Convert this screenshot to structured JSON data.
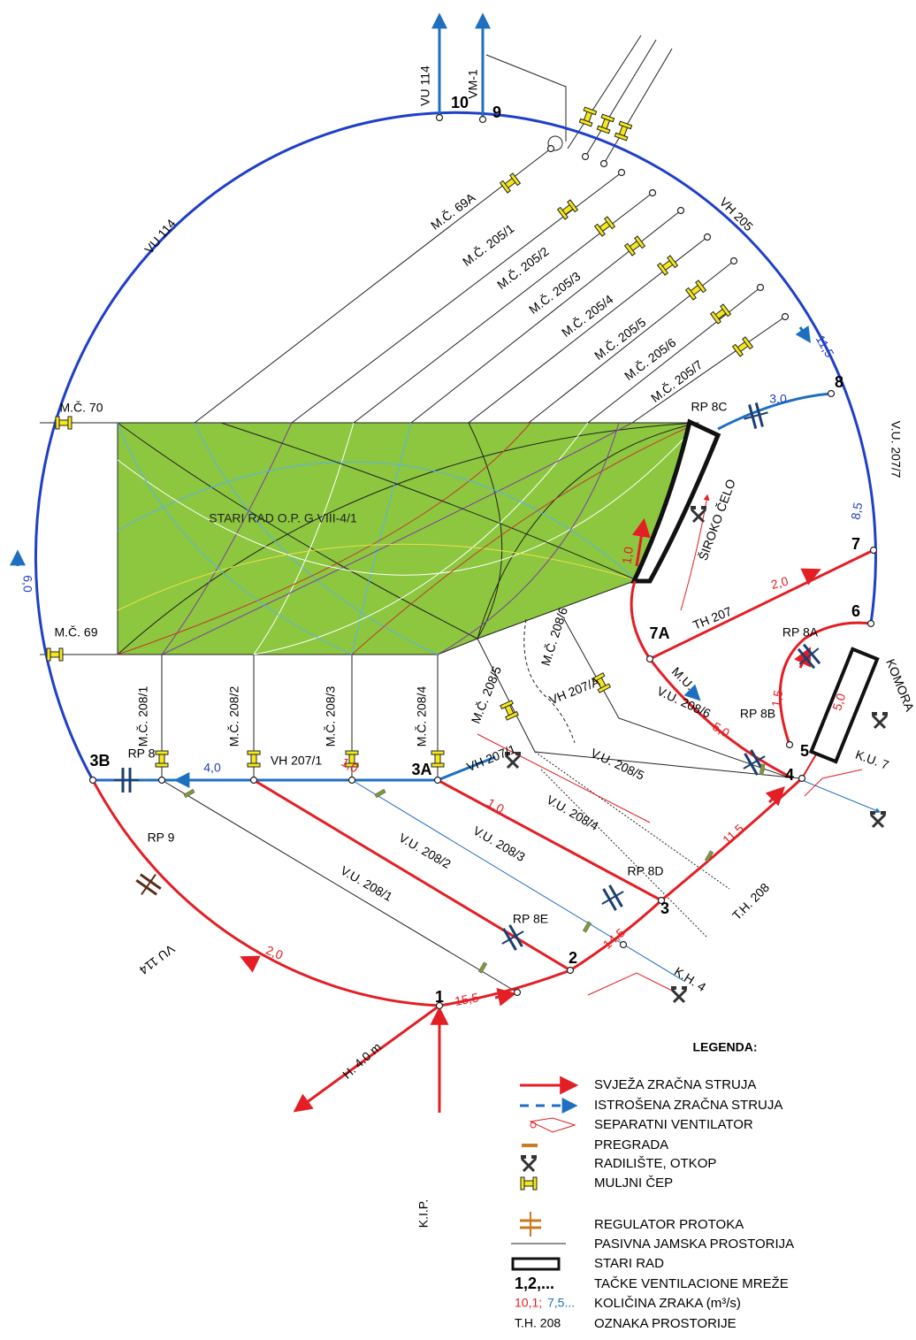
{
  "nodes": [
    "10",
    "9",
    "8",
    "7",
    "7A",
    "6",
    "5",
    "4",
    "3",
    "3A",
    "3B",
    "2",
    "1"
  ],
  "routes": [
    "VU 114",
    "VM-1",
    "M.Č. 69A",
    "M.Č. 205/1",
    "M.Č. 205/2",
    "M.Č. 205/3",
    "M.Č. 205/4",
    "M.Č. 205/5",
    "M.Č. 205/6",
    "M.Č. 205/7",
    "VH 205",
    "VU 114",
    "V.U. 207/7",
    "RP 8C",
    "ŠIROKO ČELO",
    "TH 207",
    "RP 8A",
    "KOMORA",
    "M.U.",
    "RP 8B",
    "K.U. 7",
    "V.U. 208/6",
    "V.U. 208/5",
    "VH 207/A",
    "M.Č. 208/6",
    "M.Č. 208/5",
    "VH 207/1",
    "V.U. 208/4",
    "RP 8D",
    "T.H. 208",
    "K.H. 4",
    "RP 8E",
    "V.U. 208/3",
    "V.U. 208/2",
    "V.U. 208/1",
    "RP 9",
    "RP 8",
    "VH 207/1",
    "VU 114",
    "M.Č. 70",
    "M.Č. 69",
    "M.Č. 208/1",
    "M.Č. 208/2",
    "M.Č. 208/3",
    "M.Č. 208/4",
    "STARI RAD O.P. G VIII-4/1",
    "H. 4.0 m",
    "K.I.P."
  ],
  "flows": [
    "11,5",
    "3,0",
    "8,5",
    "6,0",
    "4,0",
    "2,0",
    "1,5",
    "5,0",
    "5,0",
    "1,0",
    "11,5",
    "14,5",
    "15,5",
    "2,0",
    "1,0",
    "1,0"
  ],
  "legend": {
    "title": "LEGENDA:",
    "items": [
      "SVJEŽA ZRAČNA STRUJA",
      "ISTROŠENA ZRAČNA STRUJA",
      "SEPARATNI VENTILATOR",
      "PREGRADA",
      "RADILIŠTE, OTKOP",
      "MULJNI ČEP",
      "REGULATOR PROTOKA",
      "PASIVNA JAMSKA PROSTORIJA",
      "STARI RAD",
      "TAČKE VENTILACIONE MREŽE",
      "KOLIČINA ZRAKA  (m³/s)",
      "OZNAKA PROSTORIJE"
    ],
    "keys": {
      "points": "1,2,...",
      "fresh_value": "10,1;",
      "used_value": "7,5...",
      "room": "T.H. 208"
    }
  }
}
